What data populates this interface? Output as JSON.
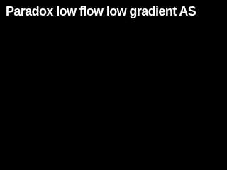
{
  "header": {
    "title": "Paradox low flow low gradient AS"
  }
}
